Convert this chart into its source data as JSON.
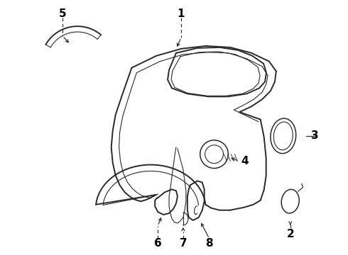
{
  "bg_color": "#ffffff",
  "line_color": "#2a2a2a",
  "label_color": "#000000",
  "label_fontsize": 11,
  "lw_main": 1.4,
  "lw_thin": 0.8,
  "lw_med": 1.1,
  "figsize": [
    4.9,
    3.6
  ],
  "dpi": 100,
  "xlim": [
    0,
    490
  ],
  "ylim": [
    0,
    360
  ]
}
